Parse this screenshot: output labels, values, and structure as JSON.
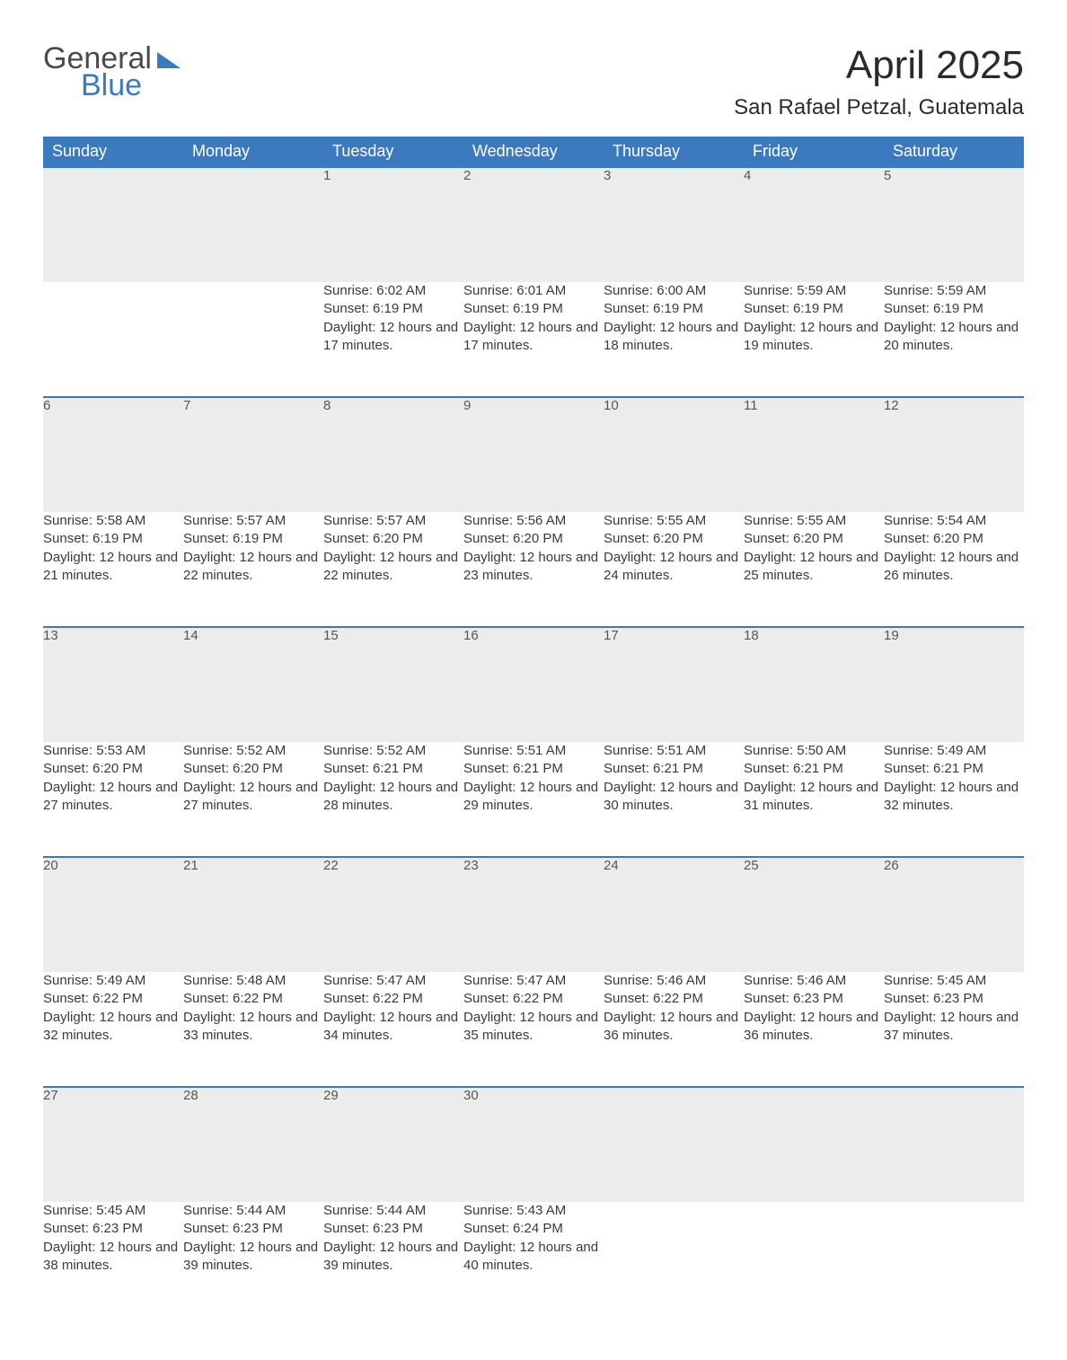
{
  "logo": {
    "general": "General",
    "blue": "Blue"
  },
  "title": "April 2025",
  "subtitle": "San Rafael Petzal, Guatemala",
  "colors": {
    "header_bg": "#3b7abf",
    "header_fg": "#ffffff",
    "daynum_bg": "#ececec",
    "row_border": "#3b7abf",
    "text": "#3a3a3a",
    "page_bg": "#ffffff"
  },
  "weekdays": [
    "Sunday",
    "Monday",
    "Tuesday",
    "Wednesday",
    "Thursday",
    "Friday",
    "Saturday"
  ],
  "weeks": [
    [
      null,
      null,
      {
        "n": "1",
        "sr": "6:02 AM",
        "ss": "6:19 PM",
        "dl": "12 hours and 17 minutes."
      },
      {
        "n": "2",
        "sr": "6:01 AM",
        "ss": "6:19 PM",
        "dl": "12 hours and 17 minutes."
      },
      {
        "n": "3",
        "sr": "6:00 AM",
        "ss": "6:19 PM",
        "dl": "12 hours and 18 minutes."
      },
      {
        "n": "4",
        "sr": "5:59 AM",
        "ss": "6:19 PM",
        "dl": "12 hours and 19 minutes."
      },
      {
        "n": "5",
        "sr": "5:59 AM",
        "ss": "6:19 PM",
        "dl": "12 hours and 20 minutes."
      }
    ],
    [
      {
        "n": "6",
        "sr": "5:58 AM",
        "ss": "6:19 PM",
        "dl": "12 hours and 21 minutes."
      },
      {
        "n": "7",
        "sr": "5:57 AM",
        "ss": "6:19 PM",
        "dl": "12 hours and 22 minutes."
      },
      {
        "n": "8",
        "sr": "5:57 AM",
        "ss": "6:20 PM",
        "dl": "12 hours and 22 minutes."
      },
      {
        "n": "9",
        "sr": "5:56 AM",
        "ss": "6:20 PM",
        "dl": "12 hours and 23 minutes."
      },
      {
        "n": "10",
        "sr": "5:55 AM",
        "ss": "6:20 PM",
        "dl": "12 hours and 24 minutes."
      },
      {
        "n": "11",
        "sr": "5:55 AM",
        "ss": "6:20 PM",
        "dl": "12 hours and 25 minutes."
      },
      {
        "n": "12",
        "sr": "5:54 AM",
        "ss": "6:20 PM",
        "dl": "12 hours and 26 minutes."
      }
    ],
    [
      {
        "n": "13",
        "sr": "5:53 AM",
        "ss": "6:20 PM",
        "dl": "12 hours and 27 minutes."
      },
      {
        "n": "14",
        "sr": "5:52 AM",
        "ss": "6:20 PM",
        "dl": "12 hours and 27 minutes."
      },
      {
        "n": "15",
        "sr": "5:52 AM",
        "ss": "6:21 PM",
        "dl": "12 hours and 28 minutes."
      },
      {
        "n": "16",
        "sr": "5:51 AM",
        "ss": "6:21 PM",
        "dl": "12 hours and 29 minutes."
      },
      {
        "n": "17",
        "sr": "5:51 AM",
        "ss": "6:21 PM",
        "dl": "12 hours and 30 minutes."
      },
      {
        "n": "18",
        "sr": "5:50 AM",
        "ss": "6:21 PM",
        "dl": "12 hours and 31 minutes."
      },
      {
        "n": "19",
        "sr": "5:49 AM",
        "ss": "6:21 PM",
        "dl": "12 hours and 32 minutes."
      }
    ],
    [
      {
        "n": "20",
        "sr": "5:49 AM",
        "ss": "6:22 PM",
        "dl": "12 hours and 32 minutes."
      },
      {
        "n": "21",
        "sr": "5:48 AM",
        "ss": "6:22 PM",
        "dl": "12 hours and 33 minutes."
      },
      {
        "n": "22",
        "sr": "5:47 AM",
        "ss": "6:22 PM",
        "dl": "12 hours and 34 minutes."
      },
      {
        "n": "23",
        "sr": "5:47 AM",
        "ss": "6:22 PM",
        "dl": "12 hours and 35 minutes."
      },
      {
        "n": "24",
        "sr": "5:46 AM",
        "ss": "6:22 PM",
        "dl": "12 hours and 36 minutes."
      },
      {
        "n": "25",
        "sr": "5:46 AM",
        "ss": "6:23 PM",
        "dl": "12 hours and 36 minutes."
      },
      {
        "n": "26",
        "sr": "5:45 AM",
        "ss": "6:23 PM",
        "dl": "12 hours and 37 minutes."
      }
    ],
    [
      {
        "n": "27",
        "sr": "5:45 AM",
        "ss": "6:23 PM",
        "dl": "12 hours and 38 minutes."
      },
      {
        "n": "28",
        "sr": "5:44 AM",
        "ss": "6:23 PM",
        "dl": "12 hours and 39 minutes."
      },
      {
        "n": "29",
        "sr": "5:44 AM",
        "ss": "6:23 PM",
        "dl": "12 hours and 39 minutes."
      },
      {
        "n": "30",
        "sr": "5:43 AM",
        "ss": "6:24 PM",
        "dl": "12 hours and 40 minutes."
      },
      null,
      null,
      null
    ]
  ],
  "labels": {
    "sunrise": "Sunrise: ",
    "sunset": "Sunset: ",
    "daylight": "Daylight: "
  }
}
